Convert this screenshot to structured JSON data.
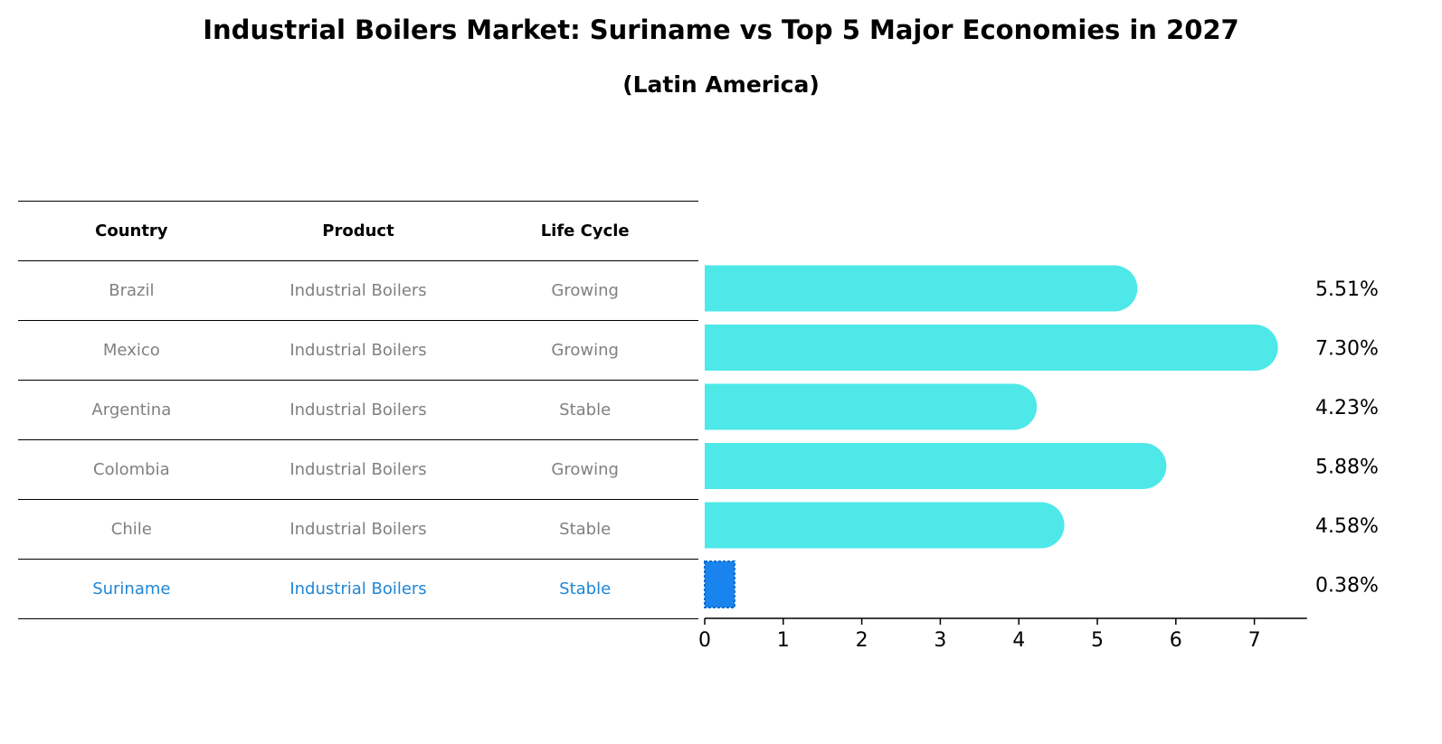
{
  "header": {
    "title": "Industrial Boilers Market: Suriname vs Top 5 Major Economies in 2027",
    "subtitle": "(Latin America)"
  },
  "table": {
    "columns": [
      "Country",
      "Product",
      "Life Cycle"
    ],
    "rows": [
      [
        "Brazil",
        "Industrial Boilers",
        "Growing"
      ],
      [
        "Mexico",
        "Industrial Boilers",
        "Growing"
      ],
      [
        "Argentina",
        "Industrial Boilers",
        "Stable"
      ],
      [
        "Colombia",
        "Industrial Boilers",
        "Growing"
      ],
      [
        "Chile",
        "Industrial Boilers",
        "Stable"
      ],
      [
        "Suriname",
        "Industrial Boilers",
        "Stable"
      ]
    ],
    "highlight_row": "Suriname"
  },
  "colors": {
    "bar": "#4ee8e8",
    "highlight": "#1a84ee",
    "highlight_text": "#1f86d6",
    "muted_text": "#808080"
  },
  "chart_data": {
    "type": "bar",
    "orientation": "horizontal",
    "categories": [
      "Brazil",
      "Mexico",
      "Argentina",
      "Colombia",
      "Chile",
      "Suriname"
    ],
    "values": [
      5.51,
      7.3,
      4.23,
      5.88,
      4.58,
      0.38
    ],
    "value_labels": [
      "5.51%",
      "7.30%",
      "4.23%",
      "5.88%",
      "4.58%",
      "0.38%"
    ],
    "xticks": [
      "0",
      "1",
      "2",
      "3",
      "4",
      "5",
      "6",
      "7"
    ],
    "xlim": [
      0,
      7.67
    ],
    "highlight": "Suriname",
    "title": "Industrial Boilers Market: Suriname vs Top 5 Major Economies in 2027",
    "subtitle": "(Latin America)",
    "xlabel": "",
    "ylabel": "",
    "grid": false,
    "legend": "none"
  }
}
